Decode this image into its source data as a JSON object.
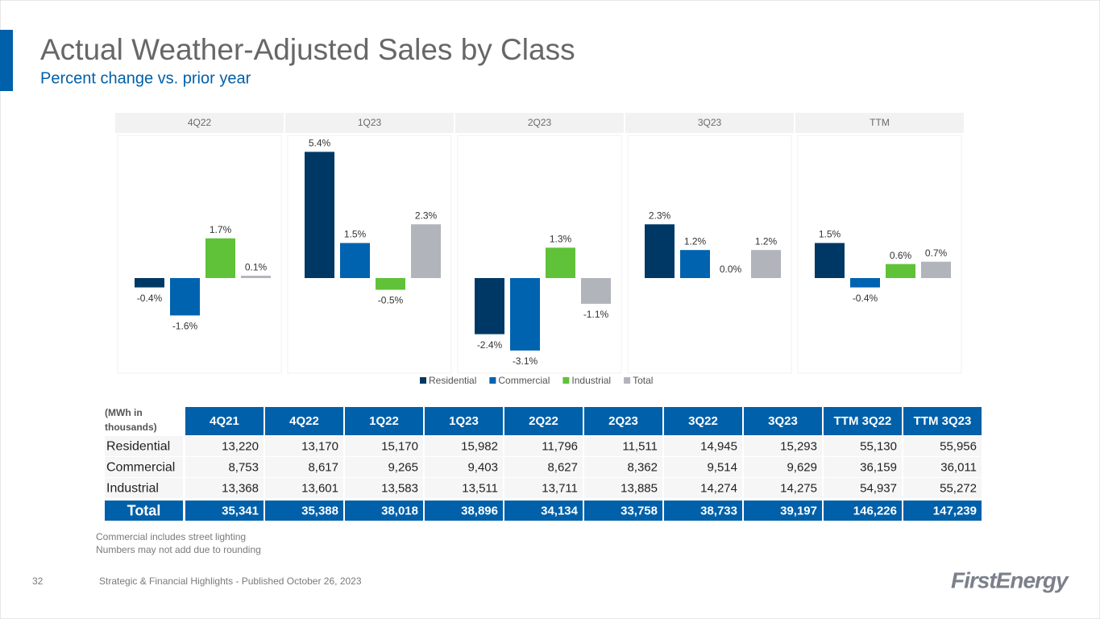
{
  "header": {
    "title": "Actual Weather-Adjusted Sales by Class",
    "subtitle": "Percent change vs. prior year"
  },
  "chart_data": {
    "type": "bar",
    "categories": [
      "4Q22",
      "1Q23",
      "2Q23",
      "3Q23",
      "TTM"
    ],
    "series": [
      {
        "name": "Residential",
        "color": "#003865",
        "values": [
          -0.4,
          5.4,
          -2.4,
          2.3,
          1.5
        ],
        "value_labels": [
          "-0.4%",
          "5.4%",
          "-2.4%",
          "2.3%",
          "1.5%"
        ]
      },
      {
        "name": "Commercial",
        "color": "#0063b0",
        "values": [
          -1.6,
          1.5,
          -3.1,
          1.2,
          -0.4
        ],
        "value_labels": [
          "-1.6%",
          "1.5%",
          "-3.1%",
          "1.2%",
          "-0.4%"
        ]
      },
      {
        "name": "Industrial",
        "color": "#5fc238",
        "values": [
          1.7,
          -0.5,
          1.3,
          0.0,
          0.6
        ],
        "value_labels": [
          "1.7%",
          "-0.5%",
          "1.3%",
          "0.0%",
          "0.6%"
        ]
      },
      {
        "name": "Total",
        "color": "#b1b4bb",
        "values": [
          0.1,
          2.3,
          -1.1,
          1.2,
          0.7
        ],
        "value_labels": [
          "0.1%",
          "2.3%",
          "-1.1%",
          "1.2%",
          "0.7%"
        ]
      }
    ],
    "legend": "bottom"
  },
  "table": {
    "corner": "(MWh in thousands)",
    "columns": [
      "4Q21",
      "4Q22",
      "1Q22",
      "1Q23",
      "2Q22",
      "2Q23",
      "3Q22",
      "3Q23",
      "TTM 3Q22",
      "TTM 3Q23"
    ],
    "rows": [
      [
        "Residential",
        "13,220",
        "13,170",
        "15,170",
        "15,982",
        "11,796",
        "11,511",
        "14,945",
        "15,293",
        "55,130",
        "55,956"
      ],
      [
        "Commercial",
        "8,753",
        "8,617",
        "9,265",
        "9,403",
        "8,627",
        "8,362",
        "9,514",
        "9,629",
        "36,159",
        "36,011"
      ],
      [
        "Industrial",
        "13,368",
        "13,601",
        "13,583",
        "13,511",
        "13,711",
        "13,885",
        "14,274",
        "14,275",
        "54,937",
        "55,272"
      ],
      [
        "Total",
        "35,341",
        "35,388",
        "38,018",
        "38,896",
        "34,134",
        "33,758",
        "38,733",
        "39,197",
        "146,226",
        "147,239"
      ]
    ]
  },
  "notes": [
    "Commercial includes street lighting",
    "Numbers may not add due to rounding"
  ],
  "footer": {
    "page": "32",
    "text": "Strategic & Financial Highlights - Published October 26, 2023",
    "logo": "FirstEnergy"
  }
}
